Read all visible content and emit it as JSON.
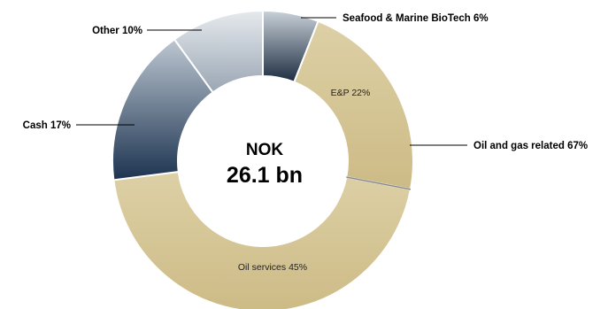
{
  "chart_data": {
    "type": "pie",
    "donut": true,
    "center": {
      "line1": "NOK",
      "line2": "26.1 bn"
    },
    "slices": [
      {
        "label": "Seafood & Marine BioTech 6%",
        "value": 6,
        "color": "#7e8c99"
      },
      {
        "label": "E&P 22%",
        "value": 22,
        "color": "#d3c392"
      },
      {
        "label": "Oil services 45%",
        "value": 45,
        "color": "#d3c392"
      },
      {
        "label": "Cash 17%",
        "value": 17,
        "color": "#3f5671"
      },
      {
        "label": "Other 10%",
        "value": 10,
        "color": "#b3bcc6"
      }
    ],
    "group_labels": [
      {
        "label": "Oil and gas related 67%",
        "value": 67
      }
    ],
    "legend": "none"
  }
}
